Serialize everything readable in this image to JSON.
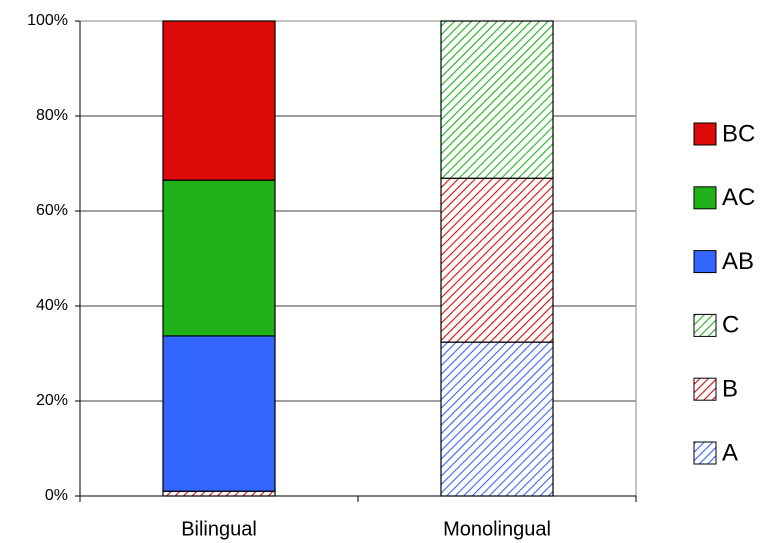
{
  "chart_data": {
    "type": "stacked_bar",
    "categories": [
      "Bilingual",
      "Monolingual"
    ],
    "series": [
      {
        "name": "A",
        "color": "#3366ff",
        "hatch": true,
        "values": [
          0,
          32.4
        ]
      },
      {
        "name": "B",
        "color": "#dd0a0a",
        "hatch": true,
        "values": [
          1,
          34.5
        ]
      },
      {
        "name": "C",
        "color": "#21b21a",
        "hatch": true,
        "values": [
          0,
          33.1
        ]
      },
      {
        "name": "AB",
        "color": "#3366ff",
        "hatch": false,
        "values": [
          32.7,
          0
        ]
      },
      {
        "name": "AC",
        "color": "#21b21a",
        "hatch": false,
        "values": [
          32.8,
          0
        ]
      },
      {
        "name": "BC",
        "color": "#dd0a0a",
        "hatch": false,
        "values": [
          33.5,
          0
        ]
      }
    ],
    "ylim": [
      0,
      100
    ],
    "yticks": [
      {
        "value": 0,
        "label": "0%"
      },
      {
        "value": 20,
        "label": "20%"
      },
      {
        "value": 40,
        "label": "40%"
      },
      {
        "value": 60,
        "label": "60%"
      },
      {
        "value": 80,
        "label": "80%"
      },
      {
        "value": 100,
        "label": "100%"
      }
    ],
    "grid": true,
    "legend": "right"
  }
}
